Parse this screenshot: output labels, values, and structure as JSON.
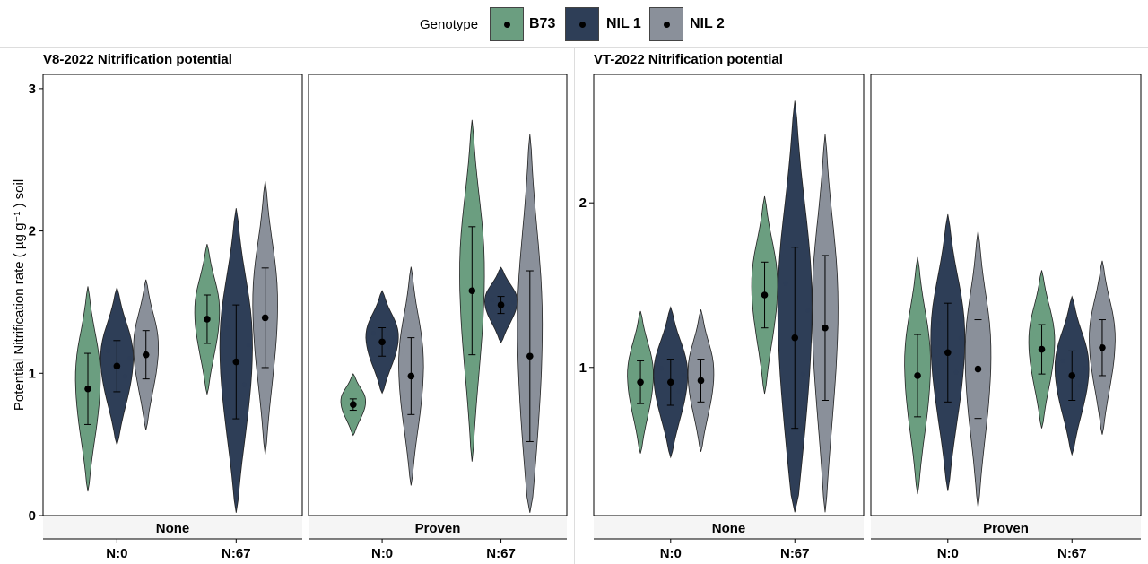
{
  "legend": {
    "title": "Genotype",
    "items": [
      {
        "label": "B73",
        "color": "#6b9e80"
      },
      {
        "label": "NIL 1",
        "color": "#2e3e57"
      },
      {
        "label": "NIL 2",
        "color": "#8a909a"
      }
    ]
  },
  "chart_data": [
    {
      "type": "violin",
      "title": "V8-2022 Nitrification potential",
      "ylabel": "Potential Nitrification rate ( µg g⁻¹ ) soil",
      "ylim": [
        0,
        3.1
      ],
      "yticks": [
        "0",
        "1",
        "2",
        "3"
      ],
      "facets": [
        "None",
        "Proven"
      ],
      "categories": [
        "N:0",
        "N:67"
      ],
      "series": [
        {
          "name": "B73",
          "mean": [
            [
              0.89,
              1.38
            ],
            [
              0.78,
              1.58
            ]
          ],
          "err": [
            [
              0.25,
              0.17
            ],
            [
              0.04,
              0.45
            ]
          ]
        },
        {
          "name": "NIL 1",
          "mean": [
            [
              1.05,
              1.08
            ],
            [
              1.22,
              1.48
            ]
          ],
          "err": [
            [
              0.18,
              0.4
            ],
            [
              0.1,
              0.06
            ]
          ]
        },
        {
          "name": "NIL 2",
          "mean": [
            [
              1.13,
              1.39
            ],
            [
              0.98,
              1.12
            ]
          ],
          "err": [
            [
              0.17,
              0.35
            ],
            [
              0.27,
              0.6
            ]
          ]
        }
      ]
    },
    {
      "type": "violin",
      "title": "VT-2022 Nitrification potential",
      "ylabel": "",
      "ylim": [
        0.1,
        2.78
      ],
      "yticks": [
        "1",
        "2"
      ],
      "facets": [
        "None",
        "Proven"
      ],
      "categories": [
        "N:0",
        "N:67"
      ],
      "series": [
        {
          "name": "B73",
          "mean": [
            [
              0.91,
              1.44
            ],
            [
              0.95,
              1.11
            ]
          ],
          "err": [
            [
              0.13,
              0.2
            ],
            [
              0.25,
              0.15
            ]
          ]
        },
        {
          "name": "NIL 1",
          "mean": [
            [
              0.91,
              1.18
            ],
            [
              1.09,
              0.95
            ]
          ],
          "err": [
            [
              0.14,
              0.55
            ],
            [
              0.3,
              0.15
            ]
          ]
        },
        {
          "name": "NIL 2",
          "mean": [
            [
              0.92,
              1.24
            ],
            [
              0.99,
              1.12
            ]
          ],
          "err": [
            [
              0.13,
              0.44
            ],
            [
              0.3,
              0.17
            ]
          ]
        }
      ]
    }
  ]
}
